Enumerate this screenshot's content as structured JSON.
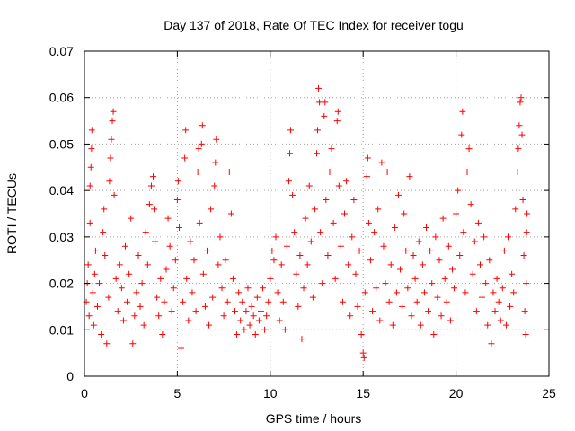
{
  "chart_data": {
    "type": "scatter",
    "title": "Day 137 of 2018, Rate Of TEC Index for receiver togu",
    "xlabel": "GPS time / hours",
    "ylabel": "ROTI / TECUs",
    "xlim": [
      0,
      25
    ],
    "ylim": [
      0,
      0.07
    ],
    "xticks": [
      0,
      5,
      10,
      15,
      20,
      25
    ],
    "xtick_labels": [
      "0",
      "5",
      "10",
      "15",
      "20",
      "25"
    ],
    "yticks": [
      0,
      0.01,
      0.02,
      0.03,
      0.04,
      0.05,
      0.06,
      0.07
    ],
    "ytick_labels": [
      "0",
      "0.01",
      "0.02",
      "0.03",
      "0.04",
      "0.05",
      "0.06",
      "0.07"
    ],
    "grid": true,
    "marker": "+",
    "color": "#ff0000",
    "series": [
      {
        "name": "ROTI",
        "points": [
          [
            0.1,
            0.016
          ],
          [
            0.15,
            0.02
          ],
          [
            0.2,
            0.024
          ],
          [
            0.25,
            0.013
          ],
          [
            0.3,
            0.033
          ],
          [
            0.3,
            0.041
          ],
          [
            0.35,
            0.045
          ],
          [
            0.38,
            0.049
          ],
          [
            0.4,
            0.053
          ],
          [
            0.45,
            0.018
          ],
          [
            0.5,
            0.011
          ],
          [
            0.55,
            0.022
          ],
          [
            0.6,
            0.027
          ],
          [
            0.7,
            0.015
          ],
          [
            0.8,
            0.02
          ],
          [
            0.9,
            0.009
          ],
          [
            1.0,
            0.031
          ],
          [
            1.05,
            0.036
          ],
          [
            1.1,
            0.026
          ],
          [
            1.2,
            0.007
          ],
          [
            1.3,
            0.017
          ],
          [
            1.35,
            0.042
          ],
          [
            1.4,
            0.047
          ],
          [
            1.45,
            0.051
          ],
          [
            1.5,
            0.055
          ],
          [
            1.55,
            0.057
          ],
          [
            1.6,
            0.039
          ],
          [
            1.7,
            0.021
          ],
          [
            1.8,
            0.014
          ],
          [
            1.9,
            0.024
          ],
          [
            2.0,
            0.019
          ],
          [
            2.1,
            0.012
          ],
          [
            2.2,
            0.028
          ],
          [
            2.3,
            0.016
          ],
          [
            2.4,
            0.022
          ],
          [
            2.5,
            0.034
          ],
          [
            2.6,
            0.007
          ],
          [
            2.7,
            0.013
          ],
          [
            2.8,
            0.018
          ],
          [
            2.9,
            0.026
          ],
          [
            3.0,
            0.015
          ],
          [
            3.1,
            0.02
          ],
          [
            3.2,
            0.011
          ],
          [
            3.3,
            0.031
          ],
          [
            3.4,
            0.024
          ],
          [
            3.5,
            0.037
          ],
          [
            3.6,
            0.041
          ],
          [
            3.7,
            0.043
          ],
          [
            3.75,
            0.036
          ],
          [
            3.8,
            0.029
          ],
          [
            3.9,
            0.017
          ],
          [
            4.0,
            0.013
          ],
          [
            4.1,
            0.021
          ],
          [
            4.2,
            0.009
          ],
          [
            4.3,
            0.016
          ],
          [
            4.4,
            0.023
          ],
          [
            4.5,
            0.034
          ],
          [
            4.6,
            0.028
          ],
          [
            4.7,
            0.014
          ],
          [
            4.8,
            0.019
          ],
          [
            4.9,
            0.025
          ],
          [
            5.0,
            0.038
          ],
          [
            5.05,
            0.042
          ],
          [
            5.1,
            0.032
          ],
          [
            5.2,
            0.006
          ],
          [
            5.3,
            0.016
          ],
          [
            5.4,
            0.047
          ],
          [
            5.45,
            0.053
          ],
          [
            5.5,
            0.021
          ],
          [
            5.6,
            0.012
          ],
          [
            5.7,
            0.029
          ],
          [
            5.8,
            0.018
          ],
          [
            5.9,
            0.025
          ],
          [
            6.0,
            0.014
          ],
          [
            6.1,
            0.044
          ],
          [
            6.15,
            0.049
          ],
          [
            6.2,
            0.033
          ],
          [
            6.3,
            0.05
          ],
          [
            6.35,
            0.054
          ],
          [
            6.4,
            0.022
          ],
          [
            6.5,
            0.015
          ],
          [
            6.6,
            0.027
          ],
          [
            6.7,
            0.011
          ],
          [
            6.8,
            0.036
          ],
          [
            6.9,
            0.017
          ],
          [
            7.0,
            0.041
          ],
          [
            7.05,
            0.046
          ],
          [
            7.1,
            0.051
          ],
          [
            7.2,
            0.024
          ],
          [
            7.3,
            0.03
          ],
          [
            7.4,
            0.019
          ],
          [
            7.5,
            0.013
          ],
          [
            7.6,
            0.025
          ],
          [
            7.7,
            0.016
          ],
          [
            7.8,
            0.044
          ],
          [
            7.9,
            0.035
          ],
          [
            8.0,
            0.021
          ],
          [
            8.1,
            0.014
          ],
          [
            8.2,
            0.009
          ],
          [
            8.3,
            0.018
          ],
          [
            8.4,
            0.012
          ],
          [
            8.5,
            0.016
          ],
          [
            8.6,
            0.01
          ],
          [
            8.7,
            0.014
          ],
          [
            8.8,
            0.019
          ],
          [
            8.9,
            0.011
          ],
          [
            9.0,
            0.015
          ],
          [
            9.1,
            0.013
          ],
          [
            9.2,
            0.009
          ],
          [
            9.3,
            0.017
          ],
          [
            9.4,
            0.012
          ],
          [
            9.5,
            0.014
          ],
          [
            9.6,
            0.019
          ],
          [
            9.7,
            0.01
          ],
          [
            9.8,
            0.013
          ],
          [
            9.9,
            0.016
          ],
          [
            10.0,
            0.021
          ],
          [
            10.1,
            0.027
          ],
          [
            10.2,
            0.025
          ],
          [
            10.3,
            0.03
          ],
          [
            10.4,
            0.018
          ],
          [
            10.5,
            0.012
          ],
          [
            10.6,
            0.024
          ],
          [
            10.7,
            0.016
          ],
          [
            10.8,
            0.01
          ],
          [
            10.9,
            0.028
          ],
          [
            11.0,
            0.042
          ],
          [
            11.05,
            0.048
          ],
          [
            11.1,
            0.053
          ],
          [
            11.2,
            0.039
          ],
          [
            11.3,
            0.031
          ],
          [
            11.4,
            0.022
          ],
          [
            11.5,
            0.015
          ],
          [
            11.6,
            0.026
          ],
          [
            11.7,
            0.008
          ],
          [
            11.8,
            0.019
          ],
          [
            11.9,
            0.034
          ],
          [
            12.0,
            0.024
          ],
          [
            12.1,
            0.041
          ],
          [
            12.2,
            0.029
          ],
          [
            12.3,
            0.017
          ],
          [
            12.4,
            0.036
          ],
          [
            12.5,
            0.048
          ],
          [
            12.55,
            0.053
          ],
          [
            12.6,
            0.062
          ],
          [
            12.65,
            0.059
          ],
          [
            12.7,
            0.031
          ],
          [
            12.8,
            0.02
          ],
          [
            12.9,
            0.056
          ],
          [
            12.95,
            0.059
          ],
          [
            13.0,
            0.038
          ],
          [
            13.1,
            0.026
          ],
          [
            13.2,
            0.044
          ],
          [
            13.3,
            0.049
          ],
          [
            13.4,
            0.033
          ],
          [
            13.5,
            0.021
          ],
          [
            13.6,
            0.055
          ],
          [
            13.65,
            0.057
          ],
          [
            13.7,
            0.041
          ],
          [
            13.8,
            0.028
          ],
          [
            13.9,
            0.016
          ],
          [
            14.0,
            0.035
          ],
          [
            14.1,
            0.042
          ],
          [
            14.2,
            0.024
          ],
          [
            14.3,
            0.013
          ],
          [
            14.4,
            0.03
          ],
          [
            14.5,
            0.038
          ],
          [
            14.6,
            0.022
          ],
          [
            14.7,
            0.015
          ],
          [
            14.8,
            0.027
          ],
          [
            14.9,
            0.009
          ],
          [
            15.0,
            0.005
          ],
          [
            15.05,
            0.004
          ],
          [
            15.1,
            0.018
          ],
          [
            15.2,
            0.043
          ],
          [
            15.25,
            0.047
          ],
          [
            15.3,
            0.033
          ],
          [
            15.4,
            0.025
          ],
          [
            15.5,
            0.014
          ],
          [
            15.6,
            0.031
          ],
          [
            15.7,
            0.019
          ],
          [
            15.8,
            0.036
          ],
          [
            15.9,
            0.012
          ],
          [
            16.0,
            0.046
          ],
          [
            16.1,
            0.028
          ],
          [
            16.2,
            0.02
          ],
          [
            16.3,
            0.044
          ],
          [
            16.4,
            0.016
          ],
          [
            16.5,
            0.024
          ],
          [
            16.6,
            0.011
          ],
          [
            16.7,
            0.032
          ],
          [
            16.8,
            0.018
          ],
          [
            16.9,
            0.039
          ],
          [
            17.0,
            0.023
          ],
          [
            17.1,
            0.015
          ],
          [
            17.2,
            0.035
          ],
          [
            17.3,
            0.027
          ],
          [
            17.4,
            0.019
          ],
          [
            17.5,
            0.043
          ],
          [
            17.6,
            0.013
          ],
          [
            17.7,
            0.026
          ],
          [
            17.8,
            0.021
          ],
          [
            17.9,
            0.016
          ],
          [
            18.0,
            0.029
          ],
          [
            18.1,
            0.011
          ],
          [
            18.2,
            0.024
          ],
          [
            18.3,
            0.018
          ],
          [
            18.4,
            0.032
          ],
          [
            18.5,
            0.014
          ],
          [
            18.6,
            0.027
          ],
          [
            18.7,
            0.02
          ],
          [
            18.8,
            0.009
          ],
          [
            18.9,
            0.03
          ],
          [
            19.0,
            0.017
          ],
          [
            19.1,
            0.025
          ],
          [
            19.2,
            0.013
          ],
          [
            19.3,
            0.034
          ],
          [
            19.4,
            0.021
          ],
          [
            19.5,
            0.016
          ],
          [
            19.6,
            0.028
          ],
          [
            19.7,
            0.012
          ],
          [
            19.8,
            0.023
          ],
          [
            19.9,
            0.019
          ],
          [
            20.0,
            0.035
          ],
          [
            20.1,
            0.04
          ],
          [
            20.2,
            0.026
          ],
          [
            20.3,
            0.052
          ],
          [
            20.35,
            0.057
          ],
          [
            20.4,
            0.031
          ],
          [
            20.5,
            0.018
          ],
          [
            20.6,
            0.044
          ],
          [
            20.7,
            0.049
          ],
          [
            20.8,
            0.037
          ],
          [
            20.9,
            0.022
          ],
          [
            21.0,
            0.029
          ],
          [
            21.1,
            0.014
          ],
          [
            21.2,
            0.033
          ],
          [
            21.3,
            0.024
          ],
          [
            21.4,
            0.017
          ],
          [
            21.5,
            0.03
          ],
          [
            21.6,
            0.02
          ],
          [
            21.7,
            0.011
          ],
          [
            21.8,
            0.025
          ],
          [
            21.9,
            0.007
          ],
          [
            22.0,
            0.018
          ],
          [
            22.1,
            0.014
          ],
          [
            22.2,
            0.021
          ],
          [
            22.3,
            0.016
          ],
          [
            22.4,
            0.012
          ],
          [
            22.5,
            0.019
          ],
          [
            22.6,
            0.027
          ],
          [
            22.7,
            0.011
          ],
          [
            22.8,
            0.03
          ],
          [
            22.9,
            0.015
          ],
          [
            23.0,
            0.022
          ],
          [
            23.1,
            0.018
          ],
          [
            23.2,
            0.036
          ],
          [
            23.3,
            0.044
          ],
          [
            23.35,
            0.049
          ],
          [
            23.4,
            0.054
          ],
          [
            23.45,
            0.059
          ],
          [
            23.5,
            0.06
          ],
          [
            23.55,
            0.052
          ],
          [
            23.6,
            0.038
          ],
          [
            23.65,
            0.026
          ],
          [
            23.7,
            0.014
          ],
          [
            23.75,
            0.009
          ],
          [
            23.78,
            0.02
          ],
          [
            23.8,
            0.031
          ],
          [
            23.82,
            0.035
          ]
        ]
      }
    ]
  }
}
